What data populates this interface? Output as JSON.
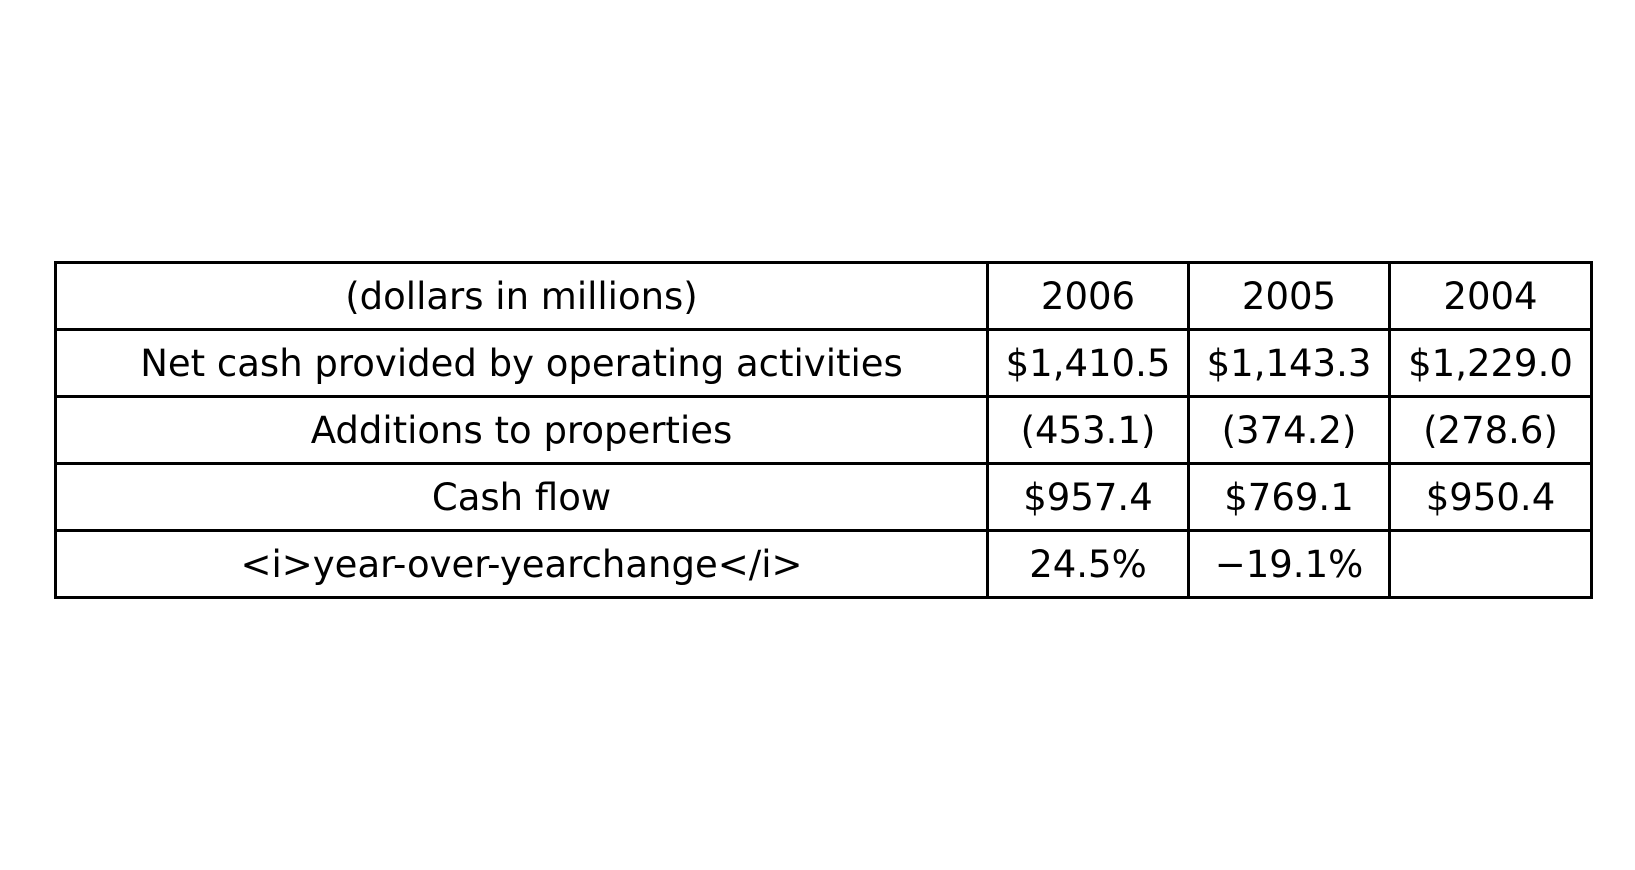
{
  "table": {
    "header": [
      "(dollars in millions)",
      "2006",
      "2005",
      "2004"
    ],
    "rows": [
      [
        "Net cash provided by operating activities",
        "$1,410.5",
        "$1,143.3",
        "$1,229.0"
      ],
      [
        "Additions to properties",
        "(453.1)",
        "(374.2)",
        "(278.6)"
      ],
      [
        "Cash flow",
        "$957.4",
        "$769.1",
        "$950.4"
      ],
      [
        "<i>year-over-yearchange</i>",
        "24.5%",
        "−19.1%",
        ""
      ]
    ]
  }
}
